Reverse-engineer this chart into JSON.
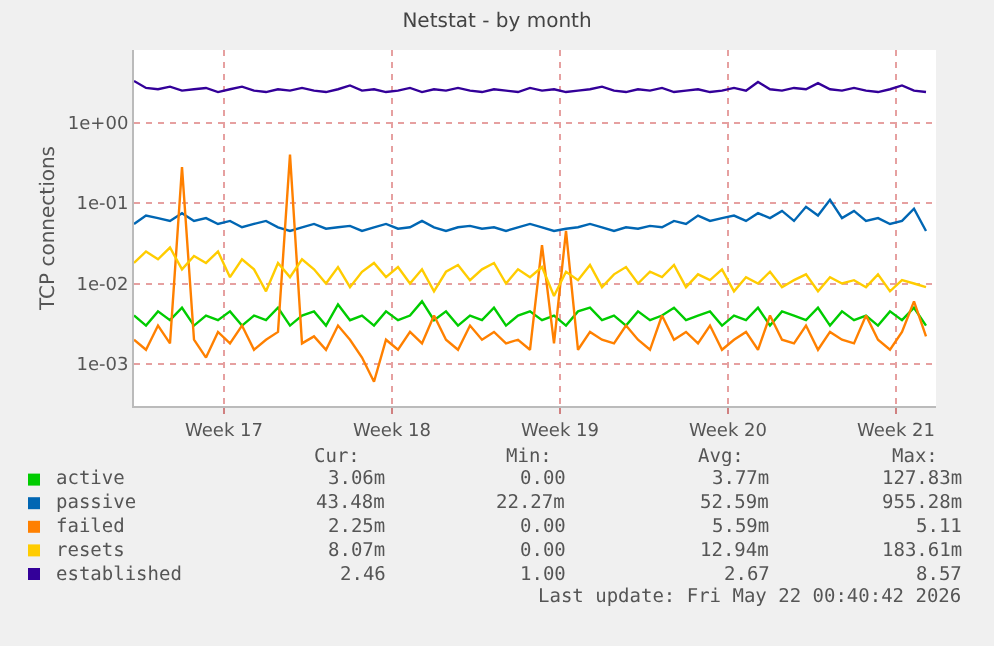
{
  "chart_data": {
    "type": "line",
    "title": "Netstat - by month",
    "ylabel": "TCP connections",
    "log": "y",
    "grid": true,
    "legend": "bottom",
    "marker": "none",
    "line_style": "solid",
    "ylim": [
      0.0003,
      8
    ],
    "yticks": [
      {
        "value": 0.001,
        "label": "1e-03"
      },
      {
        "value": 0.01,
        "label": "1e-02"
      },
      {
        "value": 0.1,
        "label": "1e-01"
      },
      {
        "value": 1,
        "label": "1e+00"
      }
    ],
    "xlim": [
      "2026-04-19T18:00",
      "2026-05-23T04:00"
    ],
    "xticks": [
      {
        "value": "2026-04-23T12:00",
        "label": "Week 17"
      },
      {
        "value": "2026-04-30T12:00",
        "label": "Week 18"
      },
      {
        "value": "2026-05-07T12:00",
        "label": "Week 19"
      },
      {
        "value": "2026-05-14T12:00",
        "label": "Week 20"
      },
      {
        "value": "2026-05-21T12:00",
        "label": "Week 21"
      }
    ],
    "x": [
      "2026-04-19T18:00",
      "2026-04-20T06:00",
      "2026-04-20T18:00",
      "2026-04-21T06:00",
      "2026-04-21T18:00",
      "2026-04-22T06:00",
      "2026-04-22T18:00",
      "2026-04-23T06:00",
      "2026-04-23T18:00",
      "2026-04-24T06:00",
      "2026-04-24T18:00",
      "2026-04-25T06:00",
      "2026-04-25T18:00",
      "2026-04-26T06:00",
      "2026-04-26T18:00",
      "2026-04-27T06:00",
      "2026-04-27T18:00",
      "2026-04-28T06:00",
      "2026-04-28T18:00",
      "2026-04-29T06:00",
      "2026-04-29T18:00",
      "2026-04-30T06:00",
      "2026-04-30T18:00",
      "2026-05-01T06:00",
      "2026-05-01T18:00",
      "2026-05-02T06:00",
      "2026-05-02T18:00",
      "2026-05-03T06:00",
      "2026-05-03T18:00",
      "2026-05-04T06:00",
      "2026-05-04T18:00",
      "2026-05-05T06:00",
      "2026-05-05T18:00",
      "2026-05-06T06:00",
      "2026-05-06T18:00",
      "2026-05-07T06:00",
      "2026-05-07T18:00",
      "2026-05-08T06:00",
      "2026-05-08T18:00",
      "2026-05-09T06:00",
      "2026-05-09T18:00",
      "2026-05-10T06:00",
      "2026-05-10T18:00",
      "2026-05-11T06:00",
      "2026-05-11T18:00",
      "2026-05-12T06:00",
      "2026-05-12T18:00",
      "2026-05-13T06:00",
      "2026-05-13T18:00",
      "2026-05-14T06:00",
      "2026-05-14T18:00",
      "2026-05-15T06:00",
      "2026-05-15T18:00",
      "2026-05-16T06:00",
      "2026-05-16T18:00",
      "2026-05-17T06:00",
      "2026-05-17T18:00",
      "2026-05-18T06:00",
      "2026-05-18T18:00",
      "2026-05-19T06:00",
      "2026-05-19T18:00",
      "2026-05-20T06:00",
      "2026-05-20T18:00",
      "2026-05-21T06:00",
      "2026-05-21T18:00",
      "2026-05-22T06:00",
      "2026-05-22T18:00"
    ],
    "series": [
      {
        "name": "active",
        "color": "#00cc00",
        "values": [
          0.004,
          0.003,
          0.0045,
          0.0035,
          0.005,
          0.003,
          0.004,
          0.0035,
          0.0045,
          0.003,
          0.004,
          0.0035,
          0.005,
          0.003,
          0.004,
          0.0045,
          0.003,
          0.0055,
          0.0035,
          0.004,
          0.003,
          0.0045,
          0.0035,
          0.004,
          0.006,
          0.0035,
          0.0045,
          0.003,
          0.004,
          0.0035,
          0.005,
          0.003,
          0.004,
          0.0045,
          0.0035,
          0.004,
          0.003,
          0.0045,
          0.005,
          0.0035,
          0.004,
          0.003,
          0.0045,
          0.0035,
          0.004,
          0.005,
          0.0035,
          0.004,
          0.0045,
          0.003,
          0.004,
          0.0035,
          0.005,
          0.003,
          0.0045,
          0.004,
          0.0035,
          0.005,
          0.003,
          0.0045,
          0.0035,
          0.004,
          0.003,
          0.0045,
          0.0035,
          0.005,
          0.003
        ]
      },
      {
        "name": "passive",
        "color": "#0066b3",
        "values": [
          0.055,
          0.07,
          0.065,
          0.06,
          0.075,
          0.06,
          0.065,
          0.055,
          0.06,
          0.05,
          0.055,
          0.06,
          0.05,
          0.045,
          0.05,
          0.055,
          0.048,
          0.05,
          0.052,
          0.045,
          0.05,
          0.055,
          0.048,
          0.05,
          0.06,
          0.05,
          0.045,
          0.05,
          0.052,
          0.048,
          0.05,
          0.045,
          0.05,
          0.055,
          0.05,
          0.045,
          0.048,
          0.05,
          0.055,
          0.05,
          0.045,
          0.05,
          0.048,
          0.052,
          0.05,
          0.06,
          0.055,
          0.07,
          0.06,
          0.065,
          0.07,
          0.06,
          0.075,
          0.065,
          0.08,
          0.06,
          0.09,
          0.07,
          0.11,
          0.065,
          0.08,
          0.06,
          0.065,
          0.055,
          0.06,
          0.085,
          0.045
        ]
      },
      {
        "name": "failed",
        "color": "#ff8000",
        "values": [
          0.002,
          0.0015,
          0.003,
          0.0018,
          0.28,
          0.002,
          0.0012,
          0.0025,
          0.0018,
          0.003,
          0.0015,
          0.002,
          0.0025,
          0.4,
          0.0018,
          0.0022,
          0.0015,
          0.003,
          0.002,
          0.0012,
          0.0006,
          0.002,
          0.0015,
          0.0025,
          0.0018,
          0.004,
          0.002,
          0.0015,
          0.003,
          0.002,
          0.0025,
          0.0018,
          0.002,
          0.0015,
          0.03,
          0.0018,
          0.045,
          0.0015,
          0.0025,
          0.002,
          0.0018,
          0.003,
          0.002,
          0.0015,
          0.004,
          0.002,
          0.0025,
          0.0018,
          0.003,
          0.0015,
          0.002,
          0.0025,
          0.0015,
          0.004,
          0.002,
          0.0018,
          0.003,
          0.0015,
          0.0025,
          0.002,
          0.0018,
          0.004,
          0.002,
          0.0015,
          0.0025,
          0.006,
          0.0022
        ]
      },
      {
        "name": "resets",
        "color": "#ffcc00",
        "values": [
          0.018,
          0.025,
          0.02,
          0.028,
          0.015,
          0.022,
          0.018,
          0.025,
          0.012,
          0.02,
          0.015,
          0.008,
          0.018,
          0.012,
          0.02,
          0.015,
          0.01,
          0.016,
          0.009,
          0.014,
          0.018,
          0.012,
          0.016,
          0.01,
          0.015,
          0.008,
          0.014,
          0.017,
          0.011,
          0.015,
          0.018,
          0.01,
          0.015,
          0.012,
          0.016,
          0.007,
          0.014,
          0.011,
          0.017,
          0.009,
          0.013,
          0.016,
          0.01,
          0.014,
          0.012,
          0.017,
          0.009,
          0.013,
          0.011,
          0.015,
          0.008,
          0.012,
          0.01,
          0.014,
          0.009,
          0.011,
          0.013,
          0.008,
          0.012,
          0.01,
          0.011,
          0.009,
          0.013,
          0.008,
          0.011,
          0.01,
          0.009
        ]
      },
      {
        "name": "established",
        "color": "#330099",
        "values": [
          3.3,
          2.7,
          2.6,
          2.8,
          2.5,
          2.6,
          2.7,
          2.4,
          2.6,
          2.8,
          2.5,
          2.4,
          2.6,
          2.5,
          2.7,
          2.5,
          2.4,
          2.6,
          2.9,
          2.5,
          2.6,
          2.4,
          2.5,
          2.7,
          2.4,
          2.6,
          2.5,
          2.7,
          2.5,
          2.4,
          2.6,
          2.5,
          2.4,
          2.7,
          2.5,
          2.6,
          2.4,
          2.5,
          2.6,
          2.8,
          2.5,
          2.4,
          2.6,
          2.5,
          2.7,
          2.4,
          2.5,
          2.6,
          2.4,
          2.5,
          2.7,
          2.5,
          3.2,
          2.6,
          2.5,
          2.7,
          2.6,
          3.1,
          2.6,
          2.5,
          2.7,
          2.5,
          2.4,
          2.6,
          2.9,
          2.5,
          2.4
        ]
      }
    ],
    "annotations": [
      "Cur:",
      "Min:",
      "Avg:",
      "Max:",
      "3.06m",
      "0.00",
      "3.77m",
      "127.83m",
      "43.48m",
      "22.27m",
      "52.59m",
      "955.28m",
      "2.25m",
      "0.00",
      "5.59m",
      "5.11",
      "8.07m",
      "0.00",
      "12.94m",
      "183.61m",
      "2.46",
      "1.00",
      "2.67",
      "8.57",
      "Last update: Fri May 22 00:40:42 2026"
    ]
  }
}
